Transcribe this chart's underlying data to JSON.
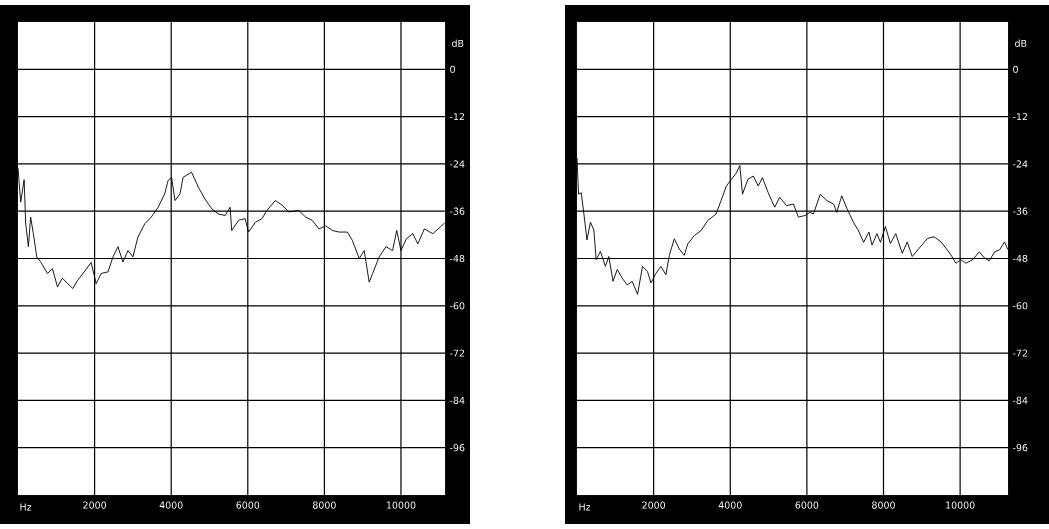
{
  "chart_data": [
    {
      "type": "line",
      "xlabel": "Hz",
      "ylabel": "dB",
      "xlim": [
        0,
        11150
      ],
      "ylim": [
        -108,
        12
      ],
      "xticks": [
        2000,
        4000,
        6000,
        8000,
        10000
      ],
      "yticks": [
        0,
        -12,
        -24,
        -36,
        -48,
        -60,
        -72,
        -84,
        -96
      ],
      "grid": true,
      "line_style": "solid",
      "x": [
        0,
        70,
        160,
        200,
        270,
        330,
        400,
        490,
        600,
        770,
        900,
        1030,
        1160,
        1300,
        1430,
        1560,
        1730,
        1910,
        2040,
        2170,
        2350,
        2480,
        2610,
        2740,
        2870,
        3000,
        3130,
        3310,
        3480,
        3660,
        3830,
        3920,
        4010,
        4100,
        4230,
        4310,
        4530,
        4710,
        4880,
        5060,
        5230,
        5410,
        5540,
        5580,
        5760,
        5930,
        6020,
        6200,
        6370,
        6500,
        6720,
        6900,
        7070,
        7330,
        7510,
        7680,
        7860,
        8030,
        8210,
        8380,
        8600,
        8730,
        8910,
        9040,
        9170,
        9260,
        9430,
        9610,
        9780,
        9890,
        10000,
        10140,
        10310,
        10440,
        10610,
        10830,
        11140
      ],
      "series": [
        {
          "color": "#000000",
          "values": [
            -25,
            -33.7,
            -28,
            -39,
            -45,
            -37.5,
            -41.7,
            -47.6,
            -49,
            -51.8,
            -50.6,
            -55.2,
            -53,
            -54.4,
            -55.6,
            -53.5,
            -51.4,
            -49,
            -54.4,
            -51.8,
            -51.4,
            -47.6,
            -45,
            -48.9,
            -46,
            -47.6,
            -42.6,
            -39.2,
            -37.5,
            -35,
            -31.6,
            -28.2,
            -27.4,
            -33.3,
            -31.6,
            -27.4,
            -26.1,
            -29.9,
            -32.9,
            -35.4,
            -36.7,
            -37.1,
            -35,
            -40.9,
            -38.3,
            -37.9,
            -41.3,
            -38.8,
            -37.9,
            -35.8,
            -33.3,
            -34.5,
            -36.2,
            -35.8,
            -37.5,
            -38.3,
            -40.5,
            -39.7,
            -40.9,
            -41.3,
            -41.3,
            -43.4,
            -48,
            -46,
            -54,
            -51.8,
            -47.6,
            -45,
            -46,
            -40.9,
            -46,
            -43,
            -41.7,
            -44.3,
            -40.5,
            -41.7,
            -39
          ]
        }
      ]
    },
    {
      "type": "line",
      "xlabel": "Hz",
      "ylabel": "dB",
      "xlim": [
        0,
        11250
      ],
      "ylim": [
        -108,
        12
      ],
      "xticks": [
        2000,
        4000,
        6000,
        8000,
        10000
      ],
      "yticks": [
        0,
        -12,
        -24,
        -36,
        -48,
        -60,
        -72,
        -84,
        -96
      ],
      "grid": true,
      "line_style": "solid",
      "x": [
        0,
        40,
        110,
        180,
        260,
        350,
        440,
        500,
        610,
        740,
        830,
        940,
        1050,
        1180,
        1310,
        1440,
        1580,
        1710,
        1840,
        1930,
        2060,
        2190,
        2320,
        2410,
        2540,
        2670,
        2800,
        2890,
        3060,
        3240,
        3410,
        3630,
        3760,
        3900,
        4030,
        4160,
        4250,
        4320,
        4460,
        4600,
        4730,
        4840,
        4990,
        5160,
        5290,
        5470,
        5650,
        5780,
        5950,
        6080,
        6170,
        6350,
        6520,
        6700,
        6780,
        6910,
        7050,
        7220,
        7350,
        7480,
        7620,
        7700,
        7830,
        7920,
        8050,
        8180,
        8320,
        8490,
        8620,
        8750,
        8930,
        9150,
        9320,
        9500,
        9630,
        9760,
        9890,
        10020,
        10150,
        10330,
        10500,
        10630,
        10760,
        10900,
        11030,
        11160,
        11250
      ],
      "series": [
        {
          "color": "#000000",
          "values": [
            -22.5,
            -31.7,
            -31.3,
            -36.7,
            -43.3,
            -38.8,
            -40.8,
            -48.3,
            -46.2,
            -50,
            -47.5,
            -53.8,
            -50.8,
            -53,
            -54.7,
            -53.8,
            -57.1,
            -50,
            -51.3,
            -54.2,
            -51.8,
            -50,
            -52.1,
            -47.2,
            -43,
            -45.6,
            -47.2,
            -44.3,
            -42.2,
            -40.9,
            -38.4,
            -36.7,
            -33.3,
            -29.6,
            -27.9,
            -26.3,
            -24.4,
            -31.7,
            -27.9,
            -27.1,
            -29.6,
            -27.5,
            -31.3,
            -35,
            -32.5,
            -34.6,
            -34.2,
            -37.5,
            -37.1,
            -36.3,
            -36.7,
            -31.7,
            -33.3,
            -34.2,
            -36.3,
            -32.1,
            -35.4,
            -38.9,
            -41,
            -43.9,
            -41.3,
            -44.6,
            -41.7,
            -43.9,
            -39.9,
            -44.2,
            -41.7,
            -46.7,
            -43.8,
            -47.5,
            -45.4,
            -42.9,
            -42.5,
            -43.8,
            -45.4,
            -47.1,
            -49.2,
            -48.3,
            -49.2,
            -48.3,
            -46.3,
            -47.8,
            -48.6,
            -46.3,
            -45.8,
            -43.8,
            -45.8
          ]
        }
      ]
    }
  ]
}
